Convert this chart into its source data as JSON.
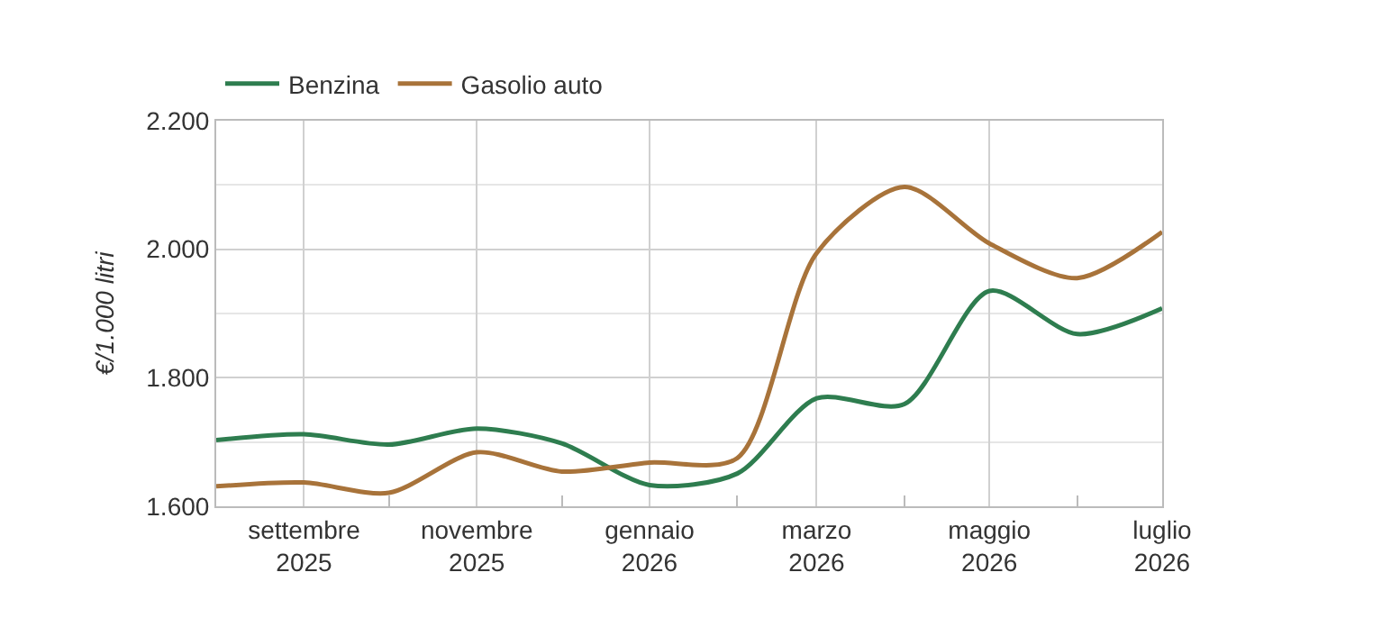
{
  "chart_data": {
    "type": "line",
    "ylabel": "€/1.000 litri",
    "x": [
      "2025-08",
      "2025-09",
      "2025-10",
      "2025-11",
      "2025-12",
      "2026-01",
      "2026-02",
      "2026-03",
      "2026-04",
      "2026-05",
      "2026-06",
      "2026-07"
    ],
    "series": [
      {
        "name": "Benzina",
        "color": "#2e7d4f",
        "values": [
          1703,
          1712,
          1696,
          1721,
          1698,
          1633,
          1651,
          1768,
          1759,
          1935,
          1868,
          1908
        ]
      },
      {
        "name": "Gasolio auto",
        "color": "#a8733a",
        "values": [
          1631,
          1637,
          1621,
          1684,
          1654,
          1668,
          1675,
          1994,
          2097,
          2009,
          1955,
          2027
        ]
      }
    ],
    "xlim": [
      "2025-08",
      "2026-07"
    ],
    "xticks": [
      {
        "value": "2025-09",
        "label": "settembre 2025"
      },
      {
        "value": "2025-10",
        "label": null
      },
      {
        "value": "2025-11",
        "label": "novembre 2025"
      },
      {
        "value": "2025-12",
        "label": null
      },
      {
        "value": "2026-01",
        "label": "gennaio 2026"
      },
      {
        "value": "2026-02",
        "label": null
      },
      {
        "value": "2026-03",
        "label": "marzo 2026"
      },
      {
        "value": "2026-04",
        "label": null
      },
      {
        "value": "2026-05",
        "label": "maggio 2026"
      },
      {
        "value": "2026-06",
        "label": null
      },
      {
        "value": "2026-07",
        "label": "luglio 2026"
      }
    ],
    "ylim": [
      1600,
      2200
    ],
    "yticks": [
      {
        "value": 1600,
        "label": "1.600"
      },
      {
        "value": 1700,
        "label": null
      },
      {
        "value": 1800,
        "label": "1.800"
      },
      {
        "value": 1900,
        "label": null
      },
      {
        "value": 2000,
        "label": "2.000"
      },
      {
        "value": 2100,
        "label": null
      },
      {
        "value": 2200,
        "label": "2.200"
      }
    ],
    "grid": true,
    "legend": "top left",
    "marker": "none",
    "line_style": "solid"
  }
}
